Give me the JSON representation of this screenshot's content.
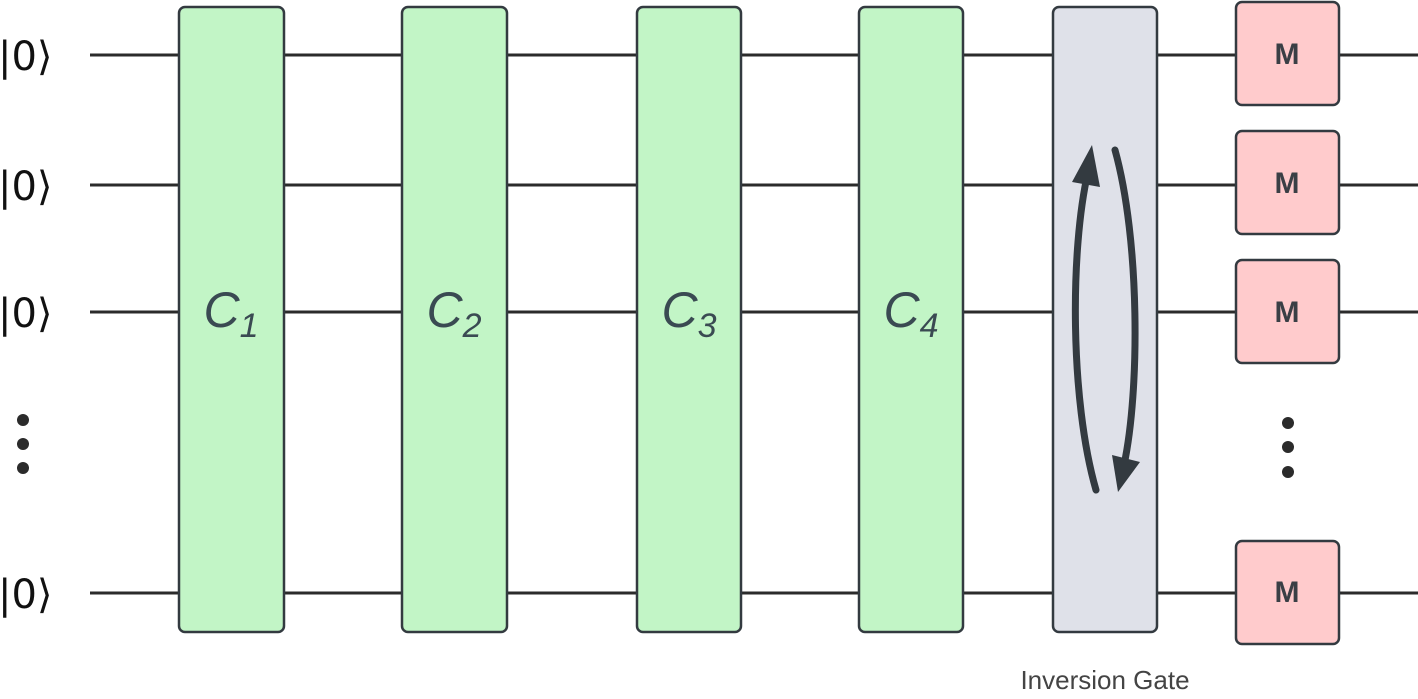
{
  "qubits": [
    {
      "label": "|0⟩"
    },
    {
      "label": "|0⟩"
    },
    {
      "label": "|0⟩"
    },
    {
      "label": "|0⟩"
    }
  ],
  "gates": [
    {
      "symbol": "C",
      "subscript": "1"
    },
    {
      "symbol": "C",
      "subscript": "2"
    },
    {
      "symbol": "C",
      "subscript": "3"
    },
    {
      "symbol": "C",
      "subscript": "4"
    }
  ],
  "inversion_gate": {
    "caption": "Inversion Gate",
    "icon": "cycle-arrows-icon"
  },
  "measurements": [
    {
      "label": "M"
    },
    {
      "label": "M"
    },
    {
      "label": "M"
    },
    {
      "label": "M"
    }
  ],
  "ellipsis_icon": "vertical-ellipsis-icon",
  "colors": {
    "gate_fill": "#c2f5c6",
    "inversion_fill": "#dfe1e9",
    "measurement_fill": "#ffcbcc",
    "outline": "#333a40"
  }
}
